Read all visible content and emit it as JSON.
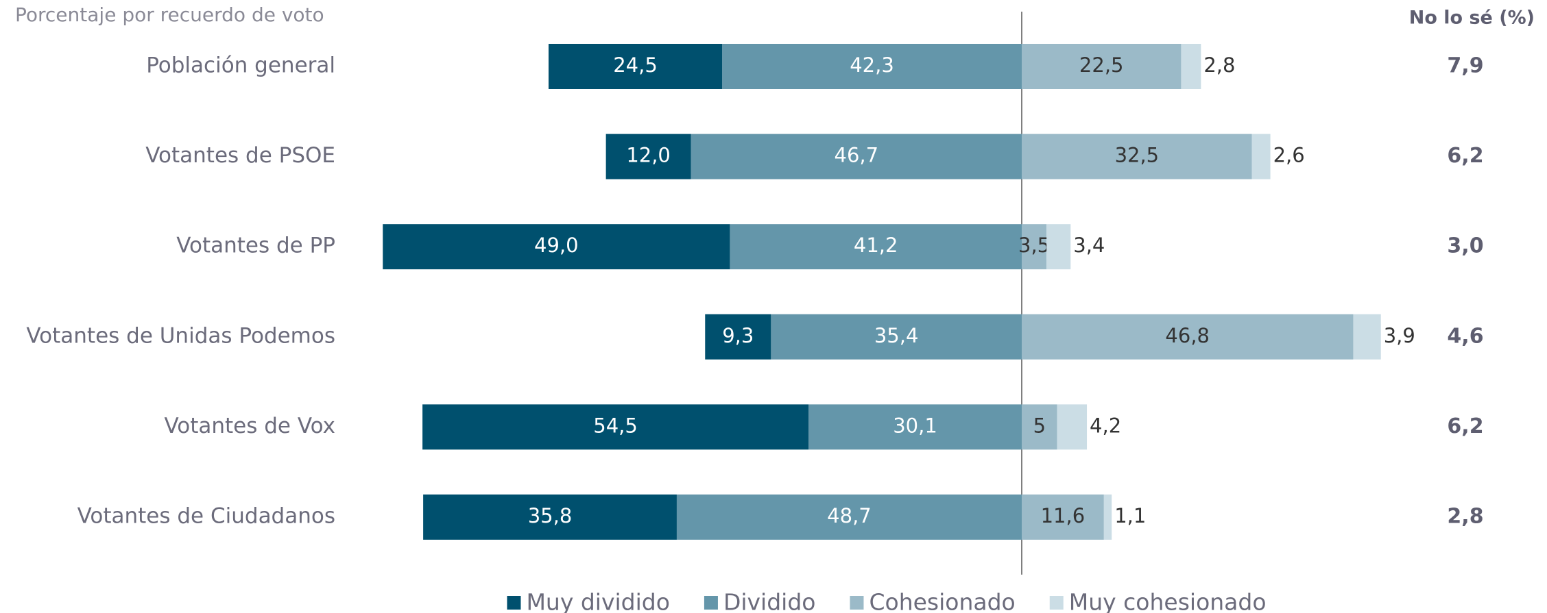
{
  "chart_data": {
    "type": "bar",
    "subtitle": "Porcentaje por recuerdo de voto",
    "categories": [
      "Población general",
      "Votantes de PSOE",
      "Votantes de PP",
      "Votantes de Unidas Podemos",
      "Votantes de Vox",
      "Votantes de Ciudadanos"
    ],
    "series": [
      {
        "name": "Muy dividido",
        "color": "#00506e",
        "values": [
          24.5,
          12.0,
          49.0,
          9.3,
          54.5,
          35.8
        ],
        "value_labels": [
          "24,5",
          "12,0",
          "49,0",
          "9,3",
          "54,5",
          "35,8"
        ]
      },
      {
        "name": "Dividido",
        "color": "#6496aa",
        "values": [
          42.3,
          46.7,
          41.2,
          35.4,
          30.1,
          48.7
        ],
        "value_labels": [
          "42,3",
          "46,7",
          "41,2",
          "35,4",
          "30,1",
          "48,7"
        ]
      },
      {
        "name": "Cohesionado",
        "color": "#9bbac8",
        "values": [
          22.5,
          32.5,
          3.5,
          46.8,
          5,
          11.6
        ],
        "value_labels": [
          "22,5",
          "32,5",
          "3,5",
          "46,8",
          "5",
          "11,6"
        ]
      },
      {
        "name": "Muy cohesionado",
        "color": "#cbdde5",
        "values": [
          2.8,
          2.6,
          3.4,
          3.9,
          4.2,
          1.1
        ],
        "value_labels": [
          "2,8",
          "2,6",
          "3,4",
          "3,9",
          "4,2",
          "1,1"
        ]
      }
    ],
    "dont_know": {
      "title": "No lo sé (%)",
      "values": [
        7.9,
        6.2,
        3.0,
        4.6,
        6.2,
        2.8
      ],
      "value_labels": [
        "7,9",
        "6,2",
        "3,0",
        "4,6",
        "6,2",
        "2,8"
      ]
    }
  }
}
